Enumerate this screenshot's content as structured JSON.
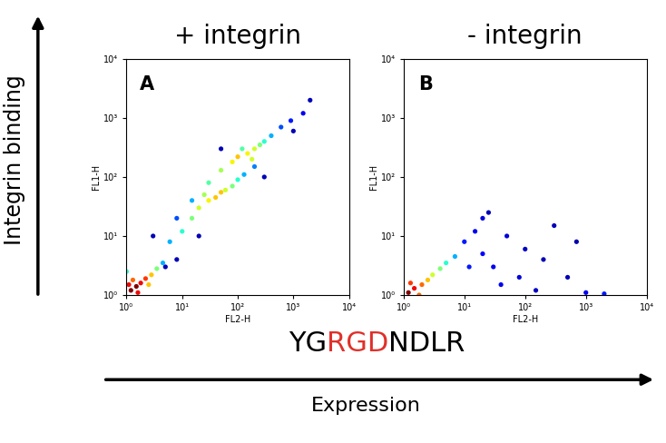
{
  "chart_data": [
    {
      "type": "scatter",
      "title": "+ integrin",
      "panel_label": "A",
      "x_label": "FL2-H",
      "y_label": "FL1-H",
      "log": true,
      "xlim": [
        1,
        10000
      ],
      "ylim": [
        1,
        10000
      ],
      "xticks": [
        {
          "value": 1,
          "label": "10⁰"
        },
        {
          "value": 10,
          "label": "10¹"
        },
        {
          "value": 100,
          "label": "10²"
        },
        {
          "value": 1000,
          "label": "10³"
        },
        {
          "value": 10000,
          "label": "10⁴"
        }
      ],
      "yticks": [
        {
          "value": 1,
          "label": "10⁰"
        },
        {
          "value": 10,
          "label": "10¹"
        },
        {
          "value": 100,
          "label": "10²"
        },
        {
          "value": 1000,
          "label": "10³"
        },
        {
          "value": 10000,
          "label": "10⁴"
        }
      ],
      "x": [
        1.2,
        1.5,
        1.8,
        2.2,
        1.3,
        2.8,
        1.1,
        3.5,
        1.6,
        2.5,
        4.5,
        1.0,
        6,
        10,
        15,
        20,
        30,
        40,
        50,
        60,
        80,
        100,
        130,
        200,
        25,
        8,
        15,
        30,
        50,
        80,
        100,
        150,
        200,
        250,
        300,
        400,
        600,
        900,
        1500,
        120,
        180,
        3,
        5,
        20,
        300,
        1000,
        2000,
        50,
        8
      ],
      "y": [
        1.2,
        1.4,
        1.6,
        1.9,
        1.8,
        2.2,
        1.5,
        2.8,
        1.1,
        1.5,
        3.5,
        2.5,
        8,
        12,
        20,
        30,
        40,
        45,
        55,
        60,
        70,
        90,
        110,
        150,
        50,
        20,
        40,
        80,
        130,
        180,
        220,
        250,
        300,
        350,
        400,
        500,
        700,
        900,
        1200,
        300,
        200,
        10,
        3,
        10,
        100,
        600,
        2000,
        300,
        4
      ],
      "density": [
        1,
        1,
        0.9,
        0.85,
        0.8,
        0.7,
        0.9,
        0.5,
        0.9,
        0.7,
        0.3,
        0.4,
        0.3,
        0.4,
        0.5,
        0.6,
        0.65,
        0.7,
        0.7,
        0.6,
        0.5,
        0.4,
        0.3,
        0.25,
        0.55,
        0.2,
        0.3,
        0.45,
        0.55,
        0.65,
        0.7,
        0.65,
        0.6,
        0.5,
        0.4,
        0.3,
        0.2,
        0.15,
        0.1,
        0.45,
        0.6,
        0.05,
        0.05,
        0.05,
        0.05,
        0.05,
        0.05,
        0.05,
        0.05
      ]
    },
    {
      "type": "scatter",
      "title": "- integrin",
      "panel_label": "B",
      "x_label": "FL2-H",
      "y_label": "FL1-H",
      "log": true,
      "xlim": [
        1,
        10000
      ],
      "ylim": [
        1,
        10000
      ],
      "xticks": [
        {
          "value": 1,
          "label": "10⁰"
        },
        {
          "value": 10,
          "label": "10¹"
        },
        {
          "value": 100,
          "label": "10²"
        },
        {
          "value": 1000,
          "label": "10³"
        },
        {
          "value": 10000,
          "label": "10⁴"
        }
      ],
      "yticks": [
        {
          "value": 1,
          "label": "10⁰"
        },
        {
          "value": 10,
          "label": "10¹"
        },
        {
          "value": 100,
          "label": "10²"
        },
        {
          "value": 1000,
          "label": "10³"
        },
        {
          "value": 10000,
          "label": "10⁴"
        }
      ],
      "x": [
        1.2,
        1.5,
        2,
        2.5,
        3,
        4,
        1.3,
        5,
        1.8,
        7,
        10,
        15,
        20,
        30,
        50,
        80,
        100,
        200,
        300,
        500,
        20,
        40,
        12,
        150,
        1000,
        2000,
        700,
        25
      ],
      "y": [
        1.1,
        1.3,
        1.5,
        1.8,
        2.2,
        2.8,
        1.6,
        3.5,
        1.0,
        4.5,
        8,
        12,
        5,
        3,
        10,
        2,
        6,
        4,
        15,
        2,
        20,
        1.5,
        3,
        1.2,
        1.1,
        1.05,
        8,
        25
      ],
      "density": [
        1,
        0.9,
        0.8,
        0.7,
        0.6,
        0.5,
        0.85,
        0.4,
        0.8,
        0.3,
        0.15,
        0.1,
        0.12,
        0.1,
        0.08,
        0.08,
        0.06,
        0.05,
        0.05,
        0.05,
        0.08,
        0.1,
        0.15,
        0.06,
        0.1,
        0.15,
        0.04,
        0.05
      ]
    }
  ],
  "annotations": {
    "y_arrow_label": "Integrin binding",
    "x_arrow_label": "Expression",
    "sequence": "YGRGDNDLR",
    "highlight": "RGD",
    "highlight_color": "#e0302a"
  }
}
